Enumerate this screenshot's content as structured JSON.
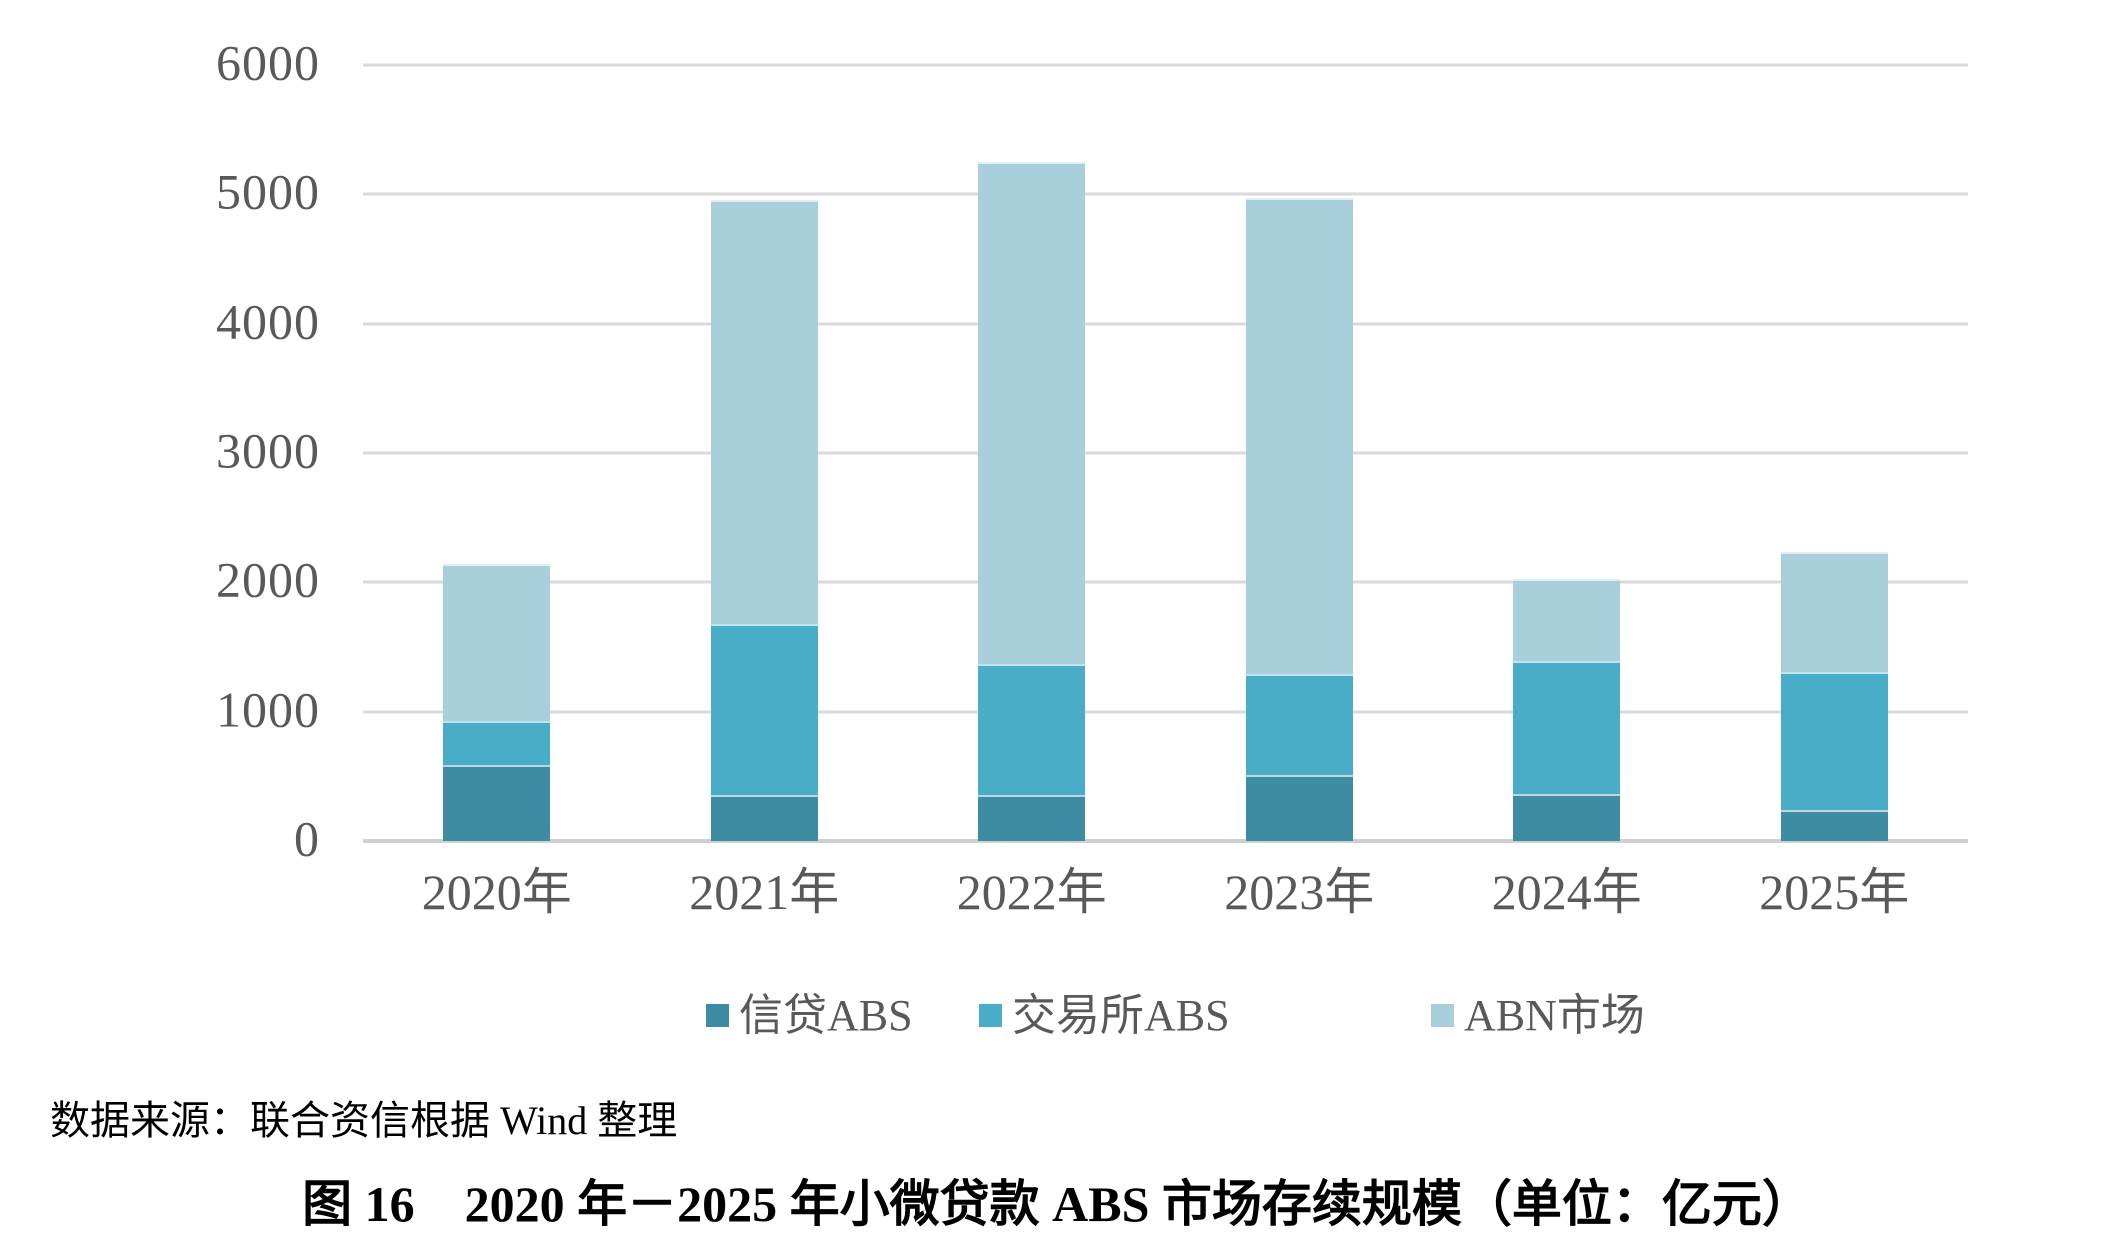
{
  "chart_data": {
    "type": "bar",
    "stacked": true,
    "title": "图 16　2020 年－2025 年小微贷款 ABS 市场存续规模（单位：亿元）",
    "unit": "亿元",
    "categories": [
      "2020年",
      "2021年",
      "2022年",
      "2023年",
      "2024年",
      "2025年"
    ],
    "series": [
      {
        "name": "信贷ABS",
        "color": "#3e8ca3",
        "values": [
          590,
          355,
          355,
          510,
          360,
          240
        ]
      },
      {
        "name": "交易所ABS",
        "color": "#4aadc8",
        "values": [
          340,
          1325,
          1010,
          780,
          1030,
          1070
        ]
      },
      {
        "name": "ABN市场",
        "color": "#a9cfdd",
        "values": [
          1210,
          3280,
          3885,
          3685,
          635,
          925
        ]
      }
    ],
    "totals": [
      2140,
      4960,
      5250,
      4975,
      2025,
      2235
    ],
    "ylim": [
      0,
      6000
    ],
    "yticks": [
      0,
      1000,
      2000,
      3000,
      4000,
      5000,
      6000
    ],
    "grid": true,
    "legend_position": "bottom"
  },
  "legend": {
    "items": [
      {
        "label": "信贷ABS",
        "color": "#3e8ca3"
      },
      {
        "label": "交易所ABS",
        "color": "#4aadc8"
      },
      {
        "label": "ABN市场",
        "color": "#a9cfdd"
      }
    ]
  },
  "source_note": "数据来源：联合资信根据 Wind 整理",
  "caption": "图 16　2020 年－2025 年小微贷款 ABS 市场存续规模（单位：亿元）",
  "colors": {
    "background": "#ffffff",
    "gridline": "#dadada",
    "axis_line": "#d0d0d0",
    "tick_label": "#595959",
    "text": "#000000"
  }
}
